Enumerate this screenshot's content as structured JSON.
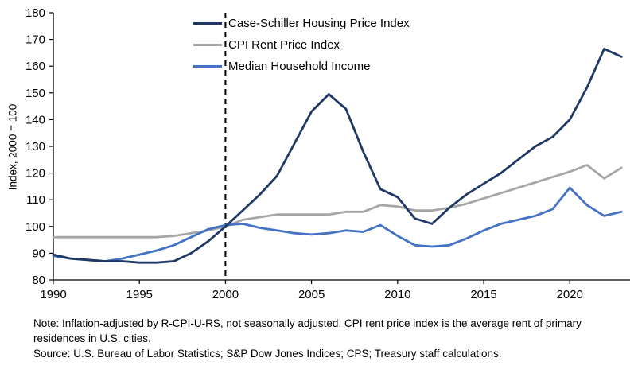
{
  "chart_data": {
    "type": "line",
    "title": "",
    "xlabel": "",
    "ylabel": "Index, 2000 = 100",
    "ylim": [
      80,
      180
    ],
    "ytick_step": 10,
    "xlim": [
      1990,
      2023.5
    ],
    "xticks": [
      1990,
      1995,
      2000,
      2005,
      2010,
      2015,
      2020
    ],
    "grid": false,
    "reference_line_x": 2000,
    "legend_position": "top-inside",
    "axis_color": "#000000",
    "x": [
      1990,
      1991,
      1992,
      1993,
      1994,
      1995,
      1996,
      1997,
      1998,
      1999,
      2000,
      2001,
      2002,
      2003,
      2004,
      2005,
      2006,
      2007,
      2008,
      2009,
      2010,
      2011,
      2012,
      2013,
      2014,
      2015,
      2016,
      2017,
      2018,
      2019,
      2020,
      2021,
      2022,
      2023
    ],
    "series": [
      {
        "name": "Case-Schiller Housing Price Index",
        "color": "#1F3864",
        "values": [
          89.5,
          88,
          87.5,
          87,
          87,
          86.5,
          86.5,
          87,
          90,
          94.5,
          100,
          106,
          112,
          119,
          131,
          143,
          149.5,
          144,
          128,
          114,
          111,
          103,
          101,
          107,
          112,
          116,
          120,
          125,
          130,
          133.5,
          140,
          152,
          166.5,
          163.5
        ]
      },
      {
        "name": "CPI Rent Price Index",
        "color": "#A6A6A6",
        "values": [
          96,
          96,
          96,
          96,
          96,
          96,
          96,
          96.5,
          97.5,
          98.5,
          100,
          102.5,
          103.5,
          104.5,
          104.5,
          104.5,
          104.5,
          105.5,
          105.5,
          108,
          107.5,
          106,
          106,
          107,
          108.5,
          110.5,
          112.5,
          114.5,
          116.5,
          118.5,
          120.5,
          123,
          118,
          122
        ]
      },
      {
        "name": "Median Household Income",
        "color": "#4472C4",
        "values": [
          89,
          88,
          87.5,
          87,
          88,
          89.5,
          91,
          93,
          96,
          99,
          100.5,
          101,
          99.5,
          98.5,
          97.5,
          97,
          97.5,
          98.5,
          98,
          100.5,
          96.5,
          93,
          92.5,
          93,
          95.5,
          98.5,
          101,
          102.5,
          104,
          106.5,
          114.5,
          108,
          104,
          105.5
        ]
      }
    ]
  },
  "notes": {
    "note": "Note: Inflation-adjusted by R-CPI-U-RS, not seasonally adjusted. CPI rent price index is the average rent of primary residences in U.S. cities.",
    "source": "Source: U.S. Bureau of Labor Statistics; S&P Dow Jones Indices; CPS; Treasury staff calculations."
  }
}
